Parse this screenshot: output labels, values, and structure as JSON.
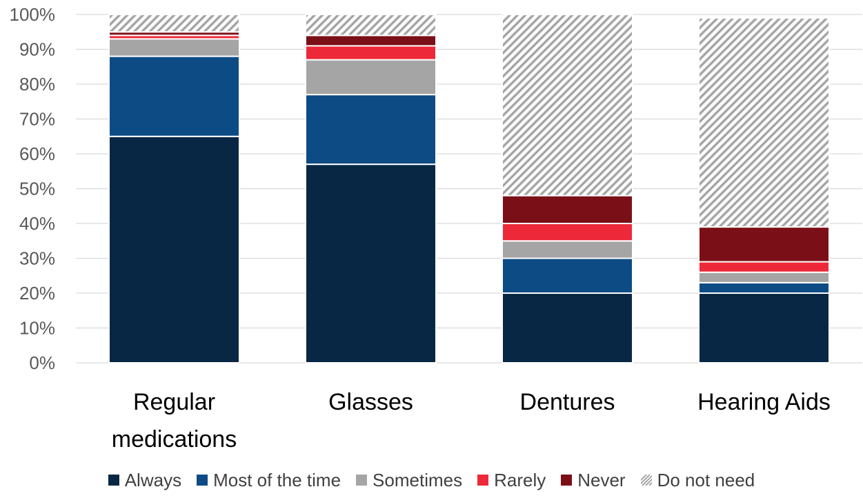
{
  "chart_data": {
    "type": "bar",
    "stacked": true,
    "categories": [
      "Regular medications",
      "Glasses",
      "Dentures",
      "Hearing Aids"
    ],
    "category_lines": [
      [
        "Regular",
        "medications"
      ],
      [
        "Glasses"
      ],
      [
        "Dentures"
      ],
      [
        "Hearing Aids"
      ]
    ],
    "ylim": [
      0,
      100
    ],
    "yticks": [
      "0%",
      "10%",
      "20%",
      "30%",
      "40%",
      "50%",
      "60%",
      "70%",
      "80%",
      "90%",
      "100%"
    ],
    "grid": true,
    "legend_position": "bottom",
    "series": [
      {
        "name": "Always",
        "color": "#082744",
        "pattern": false,
        "values": [
          65,
          57,
          20,
          20
        ]
      },
      {
        "name": "Most of the time",
        "color": "#0d4b85",
        "pattern": false,
        "values": [
          23,
          20,
          10,
          3
        ]
      },
      {
        "name": "Sometimes",
        "color": "#a5a5a5",
        "pattern": false,
        "values": [
          5,
          10,
          5,
          3
        ]
      },
      {
        "name": "Rarely",
        "color": "#ed2939",
        "pattern": false,
        "values": [
          1,
          4,
          5,
          3
        ]
      },
      {
        "name": "Never",
        "color": "#7b0f17",
        "pattern": false,
        "values": [
          1,
          3,
          8,
          10
        ]
      },
      {
        "name": "Do not need",
        "color": "#a5a5a5",
        "pattern": true,
        "values": [
          5,
          6,
          52,
          60
        ]
      }
    ]
  }
}
